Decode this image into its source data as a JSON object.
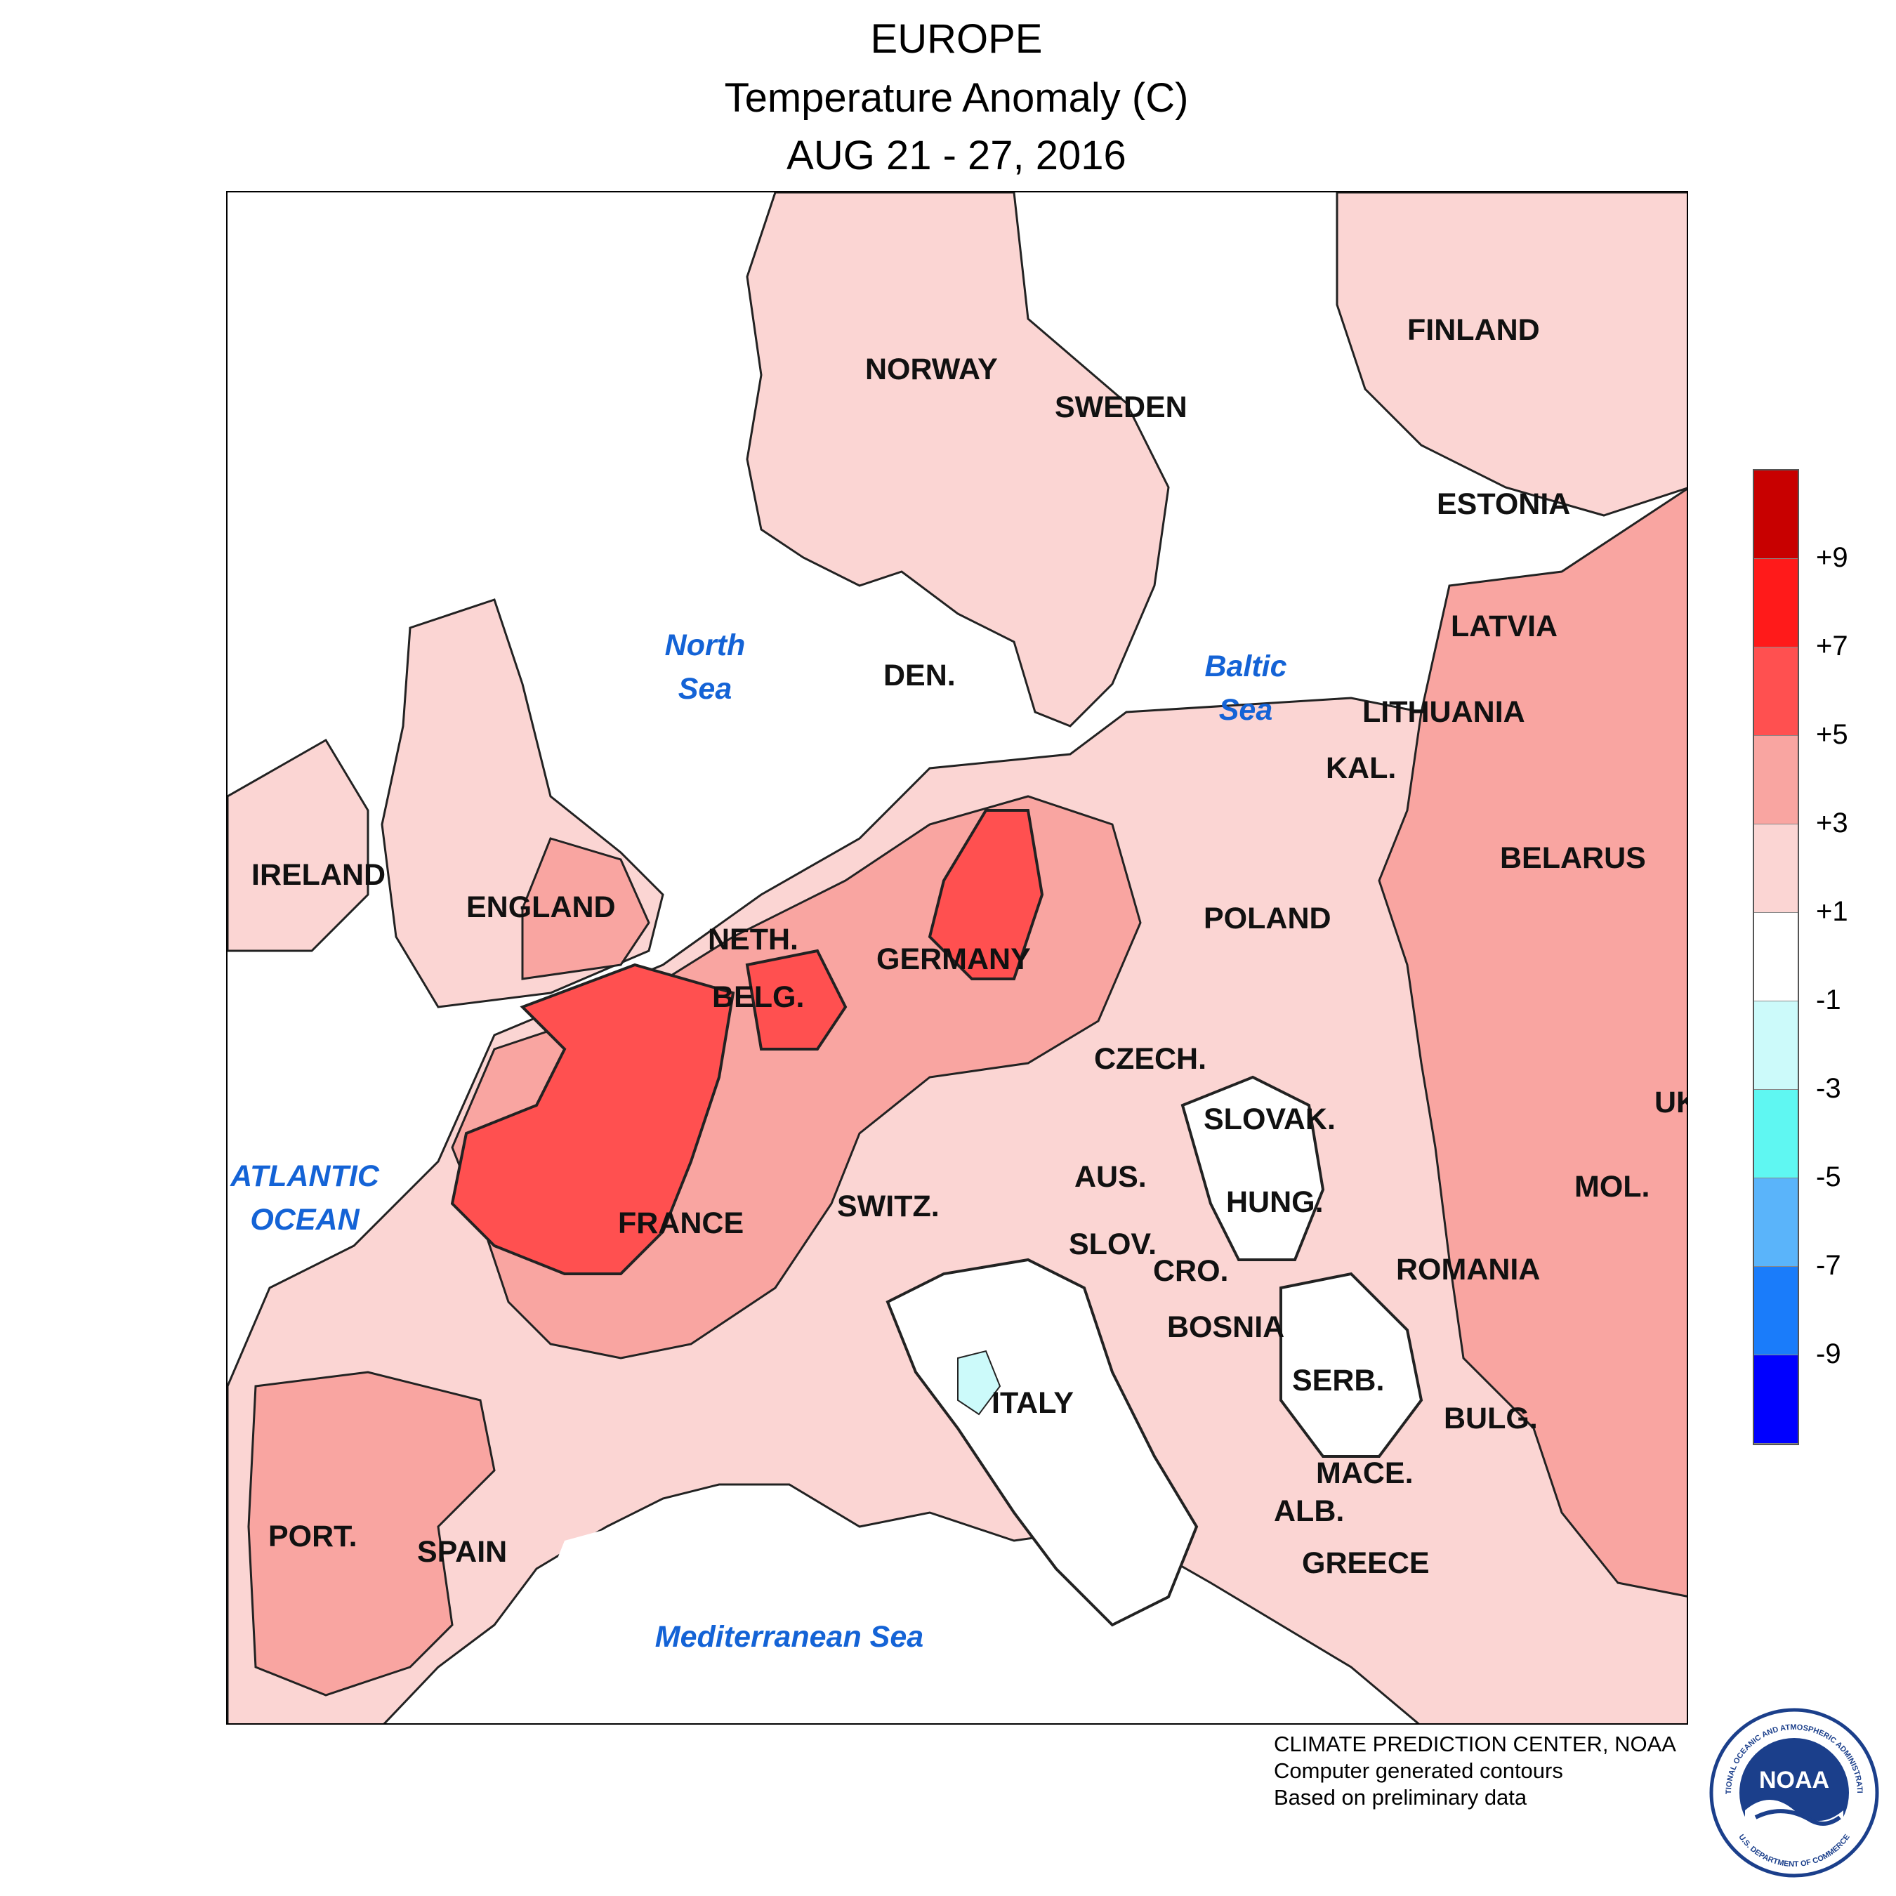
{
  "header": {
    "region": "EUROPE",
    "variable": "Temperature Anomaly (C)",
    "period": "AUG 21 - 27, 2016"
  },
  "countries": [
    {
      "name": "NORWAY"
    },
    {
      "name": "SWEDEN"
    },
    {
      "name": "FINLAND"
    },
    {
      "name": "ESTONIA"
    },
    {
      "name": "LATVIA"
    },
    {
      "name": "LITHUANIA"
    },
    {
      "name": "KAL."
    },
    {
      "name": "BELARUS"
    },
    {
      "name": "UK"
    },
    {
      "name": "DEN."
    },
    {
      "name": "IRELAND"
    },
    {
      "name": "ENGLAND"
    },
    {
      "name": "NETH."
    },
    {
      "name": "BELG."
    },
    {
      "name": "GERMANY"
    },
    {
      "name": "POLAND"
    },
    {
      "name": "CZECH."
    },
    {
      "name": "SLOVAK."
    },
    {
      "name": "AUS."
    },
    {
      "name": "HUNG."
    },
    {
      "name": "SWITZ."
    },
    {
      "name": "FRANCE"
    },
    {
      "name": "SLOV."
    },
    {
      "name": "CRO."
    },
    {
      "name": "BOSNIA"
    },
    {
      "name": "SERB."
    },
    {
      "name": "ROMANIA"
    },
    {
      "name": "MOL."
    },
    {
      "name": "BULG."
    },
    {
      "name": "MACE."
    },
    {
      "name": "ALB."
    },
    {
      "name": "GREECE"
    },
    {
      "name": "ITALY"
    },
    {
      "name": "PORT."
    },
    {
      "name": "SPAIN"
    }
  ],
  "seas": [
    {
      "name": "North Sea"
    },
    {
      "name": "Baltic Sea"
    },
    {
      "name": "ATLANTIC OCEAN"
    },
    {
      "name": "Mediterranean Sea"
    }
  ],
  "legend": {
    "colors": [
      "#c80000",
      "#ff1a1a",
      "#ff5050",
      "#f9a5a1",
      "#fbd5d3",
      "#ffffff",
      "#ccfafa",
      "#5ff7f2",
      "#5ab4fa",
      "#1a7cfa",
      "#0000ff"
    ],
    "labels": [
      "+9",
      "+7",
      "+5",
      "+3",
      "+1",
      "-1",
      "-3",
      "-5",
      "-7",
      "-9"
    ]
  },
  "anomaly_regions": [
    {
      "region": "France (central)",
      "class": "+5 to +7"
    },
    {
      "region": "Germany (east)",
      "class": "+5 to +7"
    },
    {
      "region": "Belgium / Luxembourg",
      "class": "+5 to +7"
    },
    {
      "region": "Spain / Portugal",
      "class": "+3 to +5"
    },
    {
      "region": "Baltics / Belarus / Ukraine",
      "class": "+3 to +5"
    },
    {
      "region": "Italy / Mediterranean",
      "class": "-1 to +1"
    }
  ],
  "credits": {
    "line1": "CLIMATE PREDICTION CENTER, NOAA",
    "line2": "Computer generated contours",
    "line3": "Based on preliminary data"
  },
  "logo_text": {
    "center": "NOAA",
    "ring_top": "NATIONAL OCEANIC AND ATMOSPHERIC ADMINISTRATION",
    "ring_bottom": "U.S. DEPARTMENT OF COMMERCE"
  }
}
